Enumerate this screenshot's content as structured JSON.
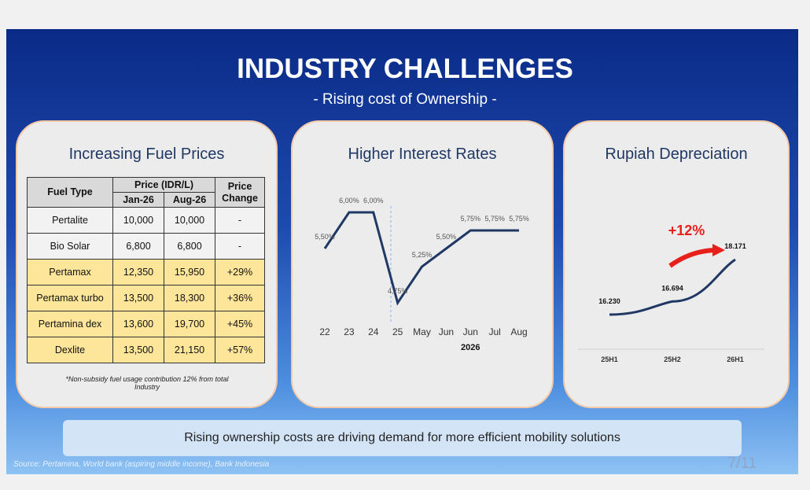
{
  "header": {
    "title": "INDUSTRY CHALLENGES",
    "subtitle": "- Rising cost of Ownership -"
  },
  "fuel_panel": {
    "title": "Increasing Fuel Prices",
    "table": {
      "columns": [
        "Fuel Type",
        "Price (IDR/L)",
        "Price Change"
      ],
      "subcolumns": [
        "Jan-26",
        "Aug-26"
      ],
      "rows": [
        [
          "Pertalite",
          "10,000",
          "10,000",
          "-"
        ],
        [
          "Bio Solar",
          "6,800",
          "6,800",
          "-"
        ],
        [
          "Pertamax",
          "12,350",
          "15,950",
          "+29%"
        ],
        [
          "Pertamax turbo",
          "13,500",
          "18,300",
          "+36%"
        ],
        [
          "Pertamina dex",
          "13,600",
          "19,700",
          "+45%"
        ],
        [
          "Dexlite",
          "13,500",
          "21,150",
          "+57%"
        ]
      ]
    },
    "note": "*Non-subsidy fuel usage contribution 12% from total Industry"
  },
  "chart_data": [
    {
      "type": "line",
      "title": "Higher Interest Rates",
      "categories": [
        "22",
        "23",
        "24",
        "25",
        "May",
        "Jun",
        "Jun",
        "Jul",
        "Aug"
      ],
      "x_group_label": "2026",
      "values": [
        5.5,
        6.0,
        6.0,
        4.75,
        5.25,
        5.5,
        5.75,
        5.75,
        5.75
      ],
      "value_labels": [
        "5,50%",
        "6,00%",
        "6,00%",
        "4,75%",
        "5,25%",
        "5,50%",
        "5,75%",
        "5,75%",
        "5,75%"
      ],
      "color": "#1f3864"
    },
    {
      "type": "line",
      "title": "Rupiah Depreciation",
      "annotation": "+12%",
      "categories": [
        "25H1",
        "25H2",
        "26H1"
      ],
      "values": [
        16.23,
        16.694,
        18.171
      ],
      "value_labels": [
        "16.230",
        "16.694",
        "18.171"
      ],
      "color": "#1f3864",
      "smooth": true
    }
  ],
  "banner": "Rising ownership costs are driving demand for more efficient mobility solutions",
  "source": "Source: Pertamina, World bank (aspiring middle income), Bank Indonesia",
  "page": "7/11"
}
